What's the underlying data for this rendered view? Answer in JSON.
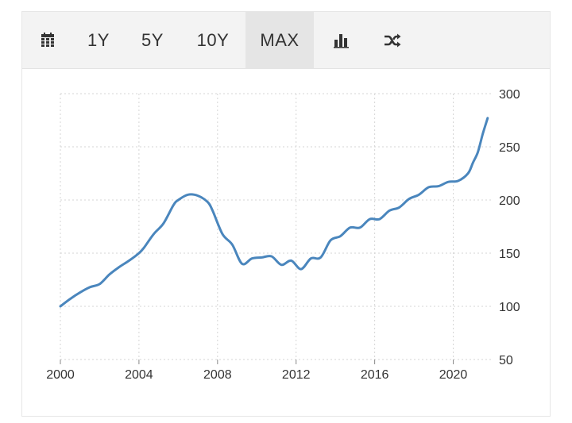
{
  "toolbar": {
    "calendar_icon": "calendar-icon",
    "range_1y": "1Y",
    "range_5y": "5Y",
    "range_10y": "10Y",
    "range_max": "MAX",
    "active_range": "MAX",
    "bar_chart_icon": "bar-chart-icon",
    "shuffle_icon": "shuffle-icon"
  },
  "colors": {
    "line": "#4a86bd",
    "grid": "#d5d5d5",
    "text": "#333333"
  },
  "chart_data": {
    "type": "line",
    "title": "",
    "xlabel": "",
    "ylabel": "",
    "xlim": [
      2000,
      2022
    ],
    "ylim": [
      50,
      300
    ],
    "x_ticks": [
      2000,
      2004,
      2008,
      2012,
      2016,
      2020
    ],
    "y_ticks": [
      50,
      100,
      150,
      200,
      250,
      300
    ],
    "y_axis_position": "right",
    "grid": "dotted",
    "legend": "none",
    "series": [
      {
        "x": [
          2000,
          2000.5,
          2001,
          2001.5,
          2002,
          2002.5,
          2003,
          2003.5,
          2004,
          2004.25,
          2004.75,
          2005.25,
          2005.75,
          2006,
          2006.5,
          2007,
          2007.5,
          2007.75,
          2008.25,
          2008.75,
          2009.25,
          2009.75,
          2010.25,
          2010.75,
          2011.25,
          2011.75,
          2012.25,
          2012.75,
          2013.25,
          2013.75,
          2014.25,
          2014.75,
          2015.25,
          2015.75,
          2016.25,
          2016.75,
          2017.25,
          2017.75,
          2018.25,
          2018.75,
          2019.25,
          2019.75,
          2020.25,
          2020.75,
          2021,
          2021.25,
          2021.5,
          2021.75
        ],
        "y": [
          100,
          107,
          113,
          118,
          121,
          130,
          137,
          143,
          150,
          155,
          168,
          178,
          195,
          200,
          205,
          204,
          198,
          190,
          168,
          158,
          140,
          145,
          146,
          147,
          139,
          143,
          135,
          145,
          146,
          162,
          166,
          174,
          174,
          182,
          182,
          190,
          193,
          201,
          205,
          212,
          213,
          217,
          218,
          225,
          235,
          245,
          262,
          277
        ]
      }
    ]
  }
}
